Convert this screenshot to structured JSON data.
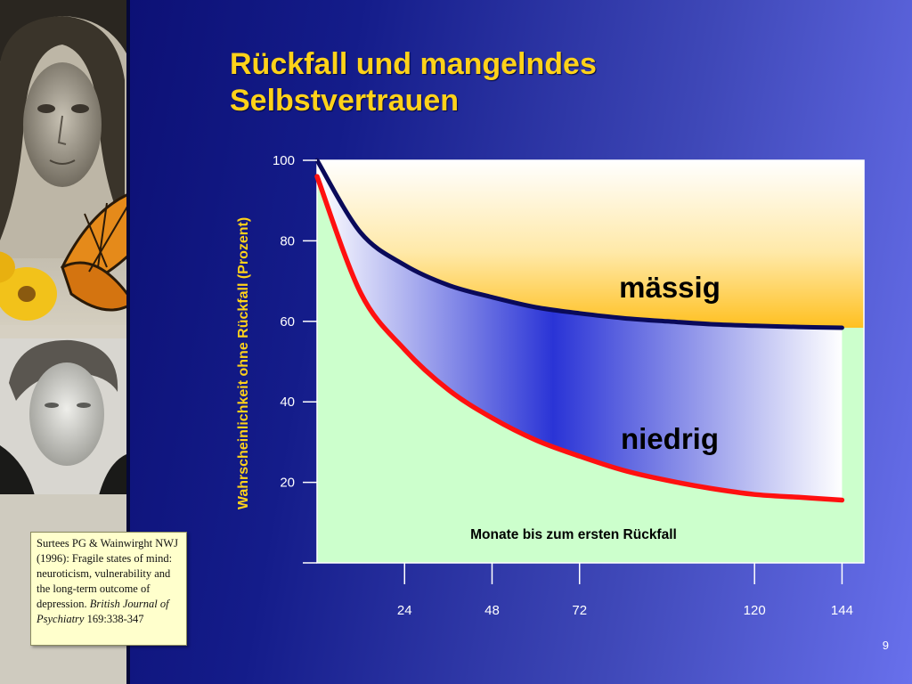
{
  "slide": {
    "title_line1": "Rückfall und mangelndes",
    "title_line2": "Selbstvertrauen",
    "page_number": "9"
  },
  "citation": {
    "text": "Surtees PG & Wainwirght NWJ (1996): Fragile states of mind: neuroticism, vulnerability and the long-term outcome of depression.",
    "journal": "British Journal of Psychiatry",
    "ref": "169:338-347"
  },
  "colors": {
    "title": "#ffd21a",
    "maessig_line": "#0a0a5a",
    "niedrig_line": "#ff1010",
    "plot_lower": "#ccffcc",
    "band_blue": "#2a34d6",
    "band_top": "#ffc020"
  },
  "chart_data": {
    "type": "line",
    "title": "",
    "xlabel": "Monate bis zum ersten Rückfall",
    "ylabel": "Wahrscheinlichkeit ohne Rückfall (Prozent)",
    "ylim": [
      0,
      100
    ],
    "xlim": [
      0,
      150
    ],
    "y_ticks": [
      20,
      40,
      60,
      80,
      100
    ],
    "x_ticks": [
      24,
      48,
      72,
      120,
      144
    ],
    "grid": false,
    "series": [
      {
        "name": "mässig",
        "color": "#0a0a5a",
        "x": [
          0,
          12,
          24,
          36,
          48,
          60,
          72,
          84,
          96,
          108,
          120,
          132,
          144
        ],
        "values": [
          100,
          82,
          74,
          69,
          66,
          63.5,
          62,
          60.8,
          60,
          59.3,
          58.9,
          58.6,
          58.4
        ]
      },
      {
        "name": "niedrig",
        "color": "#ff1010",
        "x": [
          0,
          12,
          24,
          36,
          48,
          60,
          72,
          84,
          96,
          108,
          120,
          132,
          144
        ],
        "values": [
          96,
          67,
          53,
          43,
          36,
          30.5,
          26.5,
          23,
          20.5,
          18.5,
          17,
          16.3,
          15.6
        ]
      }
    ]
  }
}
